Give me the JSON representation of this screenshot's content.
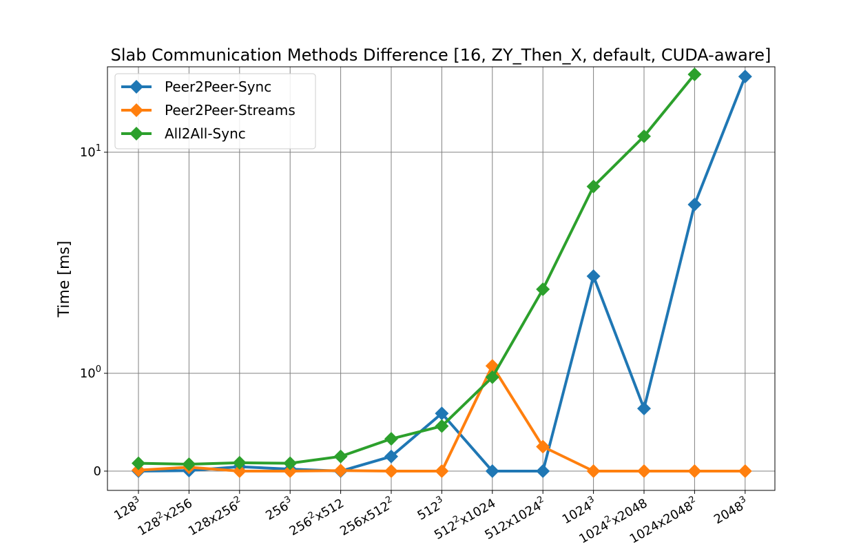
{
  "chart_data": {
    "type": "line",
    "title": "Slab Communication Methods Difference [16, ZY_Then_X, default, CUDA-aware]",
    "xlabel": "",
    "ylabel": "Time [ms]",
    "y_scale": "symlog",
    "y_ticks": [
      {
        "value": 0,
        "base": "0",
        "exp": ""
      },
      {
        "value": 1,
        "base": "10",
        "exp": "0"
      },
      {
        "value": 10,
        "base": "10",
        "exp": "1"
      }
    ],
    "ylim": [
      -0.2,
      25
    ],
    "grid": true,
    "legend_position": "top-left",
    "categories": [
      {
        "label": "128",
        "sup": "3",
        "rest": "",
        "sup2": ""
      },
      {
        "label": "128",
        "sup": "2",
        "rest": "x256",
        "sup2": ""
      },
      {
        "label": "128x256",
        "sup": "2",
        "rest": "",
        "sup2": ""
      },
      {
        "label": "256",
        "sup": "3",
        "rest": "",
        "sup2": ""
      },
      {
        "label": "256",
        "sup": "2",
        "rest": "x512",
        "sup2": ""
      },
      {
        "label": "256x512",
        "sup": "2",
        "rest": "",
        "sup2": ""
      },
      {
        "label": "512",
        "sup": "3",
        "rest": "",
        "sup2": ""
      },
      {
        "label": "512",
        "sup": "2",
        "rest": "x1024",
        "sup2": ""
      },
      {
        "label": "512x1024",
        "sup": "2",
        "rest": "",
        "sup2": ""
      },
      {
        "label": "1024",
        "sup": "3",
        "rest": "",
        "sup2": ""
      },
      {
        "label": "1024",
        "sup": "2",
        "rest": "x2048",
        "sup2": ""
      },
      {
        "label": "1024x2048",
        "sup": "2",
        "rest": "",
        "sup2": ""
      },
      {
        "label": "2048",
        "sup": "3",
        "rest": "",
        "sup2": ""
      }
    ],
    "series": [
      {
        "name": "Peer2Peer-Sync",
        "color": "#1f77b4",
        "values": [
          0.0,
          0.005,
          0.045,
          0.02,
          0.0,
          0.15,
          0.59,
          0.0,
          0.0,
          2.75,
          0.64,
          5.8,
          22.0
        ]
      },
      {
        "name": "Peer2Peer-Streams",
        "color": "#ff7f0e",
        "values": [
          0.01,
          0.04,
          0.0,
          0.0,
          0.005,
          0.0,
          0.0,
          1.08,
          0.25,
          0.0,
          0.0,
          0.0,
          0.0
        ]
      },
      {
        "name": "All2All-Sync",
        "color": "#2ca02c",
        "values": [
          0.08,
          0.07,
          0.085,
          0.08,
          0.15,
          0.33,
          0.46,
          0.96,
          2.4,
          7.0,
          11.8,
          22.5,
          null
        ]
      }
    ]
  }
}
